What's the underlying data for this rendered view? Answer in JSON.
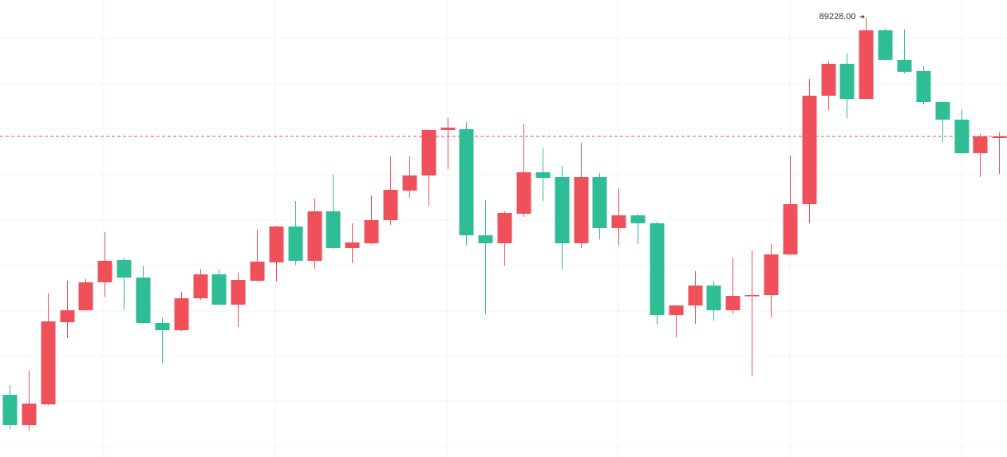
{
  "chart_data": {
    "type": "candlestick",
    "up_color": "#ef5059",
    "down_color": "#2ebd94",
    "ylim": [
      78208,
      89668
    ],
    "grid": true,
    "price_line": 86248,
    "price_line_color": "#e0535c",
    "high_label": {
      "value": 89228,
      "label": "89228.00"
    },
    "open": [
      79768,
      79008,
      79528,
      81588,
      81888,
      82588,
      83148,
      82708,
      81568,
      81388,
      82188,
      82788,
      82028,
      82628,
      83088,
      83988,
      83128,
      84368,
      83448,
      83568,
      84148,
      84888,
      85268,
      86408,
      86428,
      83768,
      83568,
      84308,
      85348,
      85228,
      83568,
      85228,
      83948,
      84268,
      84068,
      81768,
      82008,
      82508,
      81888,
      82248,
      82268,
      83288,
      84548,
      87268,
      88068,
      87188,
      88908,
      88168,
      87888,
      87108,
      86668,
      85828,
      86208
    ],
    "high": [
      80008,
      80368,
      82308,
      82628,
      82668,
      83848,
      83208,
      83008,
      81708,
      82348,
      82928,
      82908,
      82828,
      83908,
      84008,
      84628,
      84688,
      85288,
      84068,
      84768,
      85748,
      85748,
      86428,
      86708,
      86608,
      84648,
      84368,
      86568,
      85948,
      85508,
      86088,
      85328,
      84948,
      84308,
      84108,
      82008,
      82868,
      82628,
      83208,
      83388,
      83548,
      85768,
      87688,
      88128,
      88328,
      89228,
      88948,
      88928,
      88008,
      87128,
      86928,
      86308,
      86348
    ],
    "low": [
      78908,
      78868,
      79508,
      81188,
      81868,
      82228,
      81908,
      81548,
      80568,
      81368,
      82148,
      82008,
      81468,
      82608,
      82608,
      83028,
      82928,
      83428,
      83068,
      83548,
      84028,
      84708,
      84508,
      85428,
      83508,
      81788,
      83008,
      84228,
      84628,
      82928,
      83448,
      83668,
      83508,
      83548,
      81528,
      81208,
      81548,
      81628,
      81788,
      80248,
      81708,
      83268,
      84068,
      86908,
      86708,
      87188,
      88148,
      87828,
      87048,
      86108,
      85808,
      85228,
      85308
    ],
    "close": [
      79008,
      79548,
      81608,
      81888,
      82588,
      83128,
      82708,
      81568,
      81388,
      82188,
      82788,
      82028,
      82648,
      83108,
      83988,
      83128,
      84368,
      83448,
      83588,
      84148,
      84908,
      85268,
      86408,
      86468,
      83768,
      83568,
      84328,
      85348,
      85208,
      83568,
      85228,
      83948,
      84268,
      84068,
      81768,
      82008,
      82508,
      81888,
      82248,
      82268,
      83288,
      84548,
      87268,
      88068,
      87188,
      88908,
      88168,
      87868,
      87108,
      86668,
      85828,
      86248,
      86248
    ]
  }
}
